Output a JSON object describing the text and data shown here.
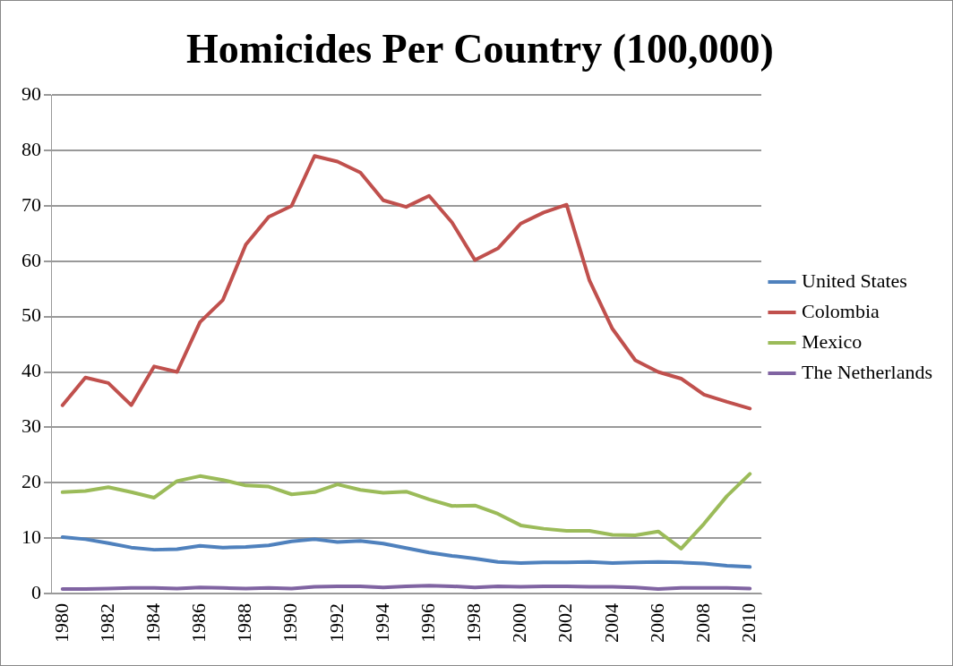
{
  "chart_data": {
    "type": "line",
    "title": "Homicides Per Country (100,000)",
    "categories": [
      "1980",
      null,
      "1982",
      null,
      "1984",
      null,
      "1986",
      null,
      "1988",
      null,
      "1990",
      null,
      "1992",
      null,
      "1994",
      null,
      "1996",
      null,
      "1998",
      null,
      "2000",
      null,
      "2002",
      null,
      "2004",
      null,
      "2006",
      null,
      "2008",
      null,
      "2010"
    ],
    "series": [
      {
        "name": "United States",
        "color": "#4f81bd",
        "values": [
          10.2,
          9.8,
          9.1,
          8.3,
          7.9,
          8.0,
          8.6,
          8.3,
          8.4,
          8.7,
          9.4,
          9.8,
          9.3,
          9.5,
          9.0,
          8.2,
          7.4,
          6.8,
          6.3,
          5.7,
          5.5,
          5.6,
          5.6,
          5.7,
          5.5,
          5.6,
          5.7,
          5.6,
          5.4,
          5.0,
          4.8
        ]
      },
      {
        "name": "Colombia",
        "color": "#c0504d",
        "values": [
          34,
          39,
          38,
          34,
          41,
          40,
          49,
          53,
          63,
          68,
          70,
          79,
          78,
          76,
          71,
          69.8,
          71.8,
          67,
          60.2,
          62.3,
          66.8,
          68.8,
          70.2,
          56.5,
          47.8,
          42.1,
          40,
          38.8,
          35.9,
          34.6,
          33.4
        ]
      },
      {
        "name": "Mexico",
        "color": "#9bbb59",
        "values": [
          18.3,
          18.5,
          19.2,
          18.3,
          17.3,
          20.3,
          21.2,
          20.5,
          19.5,
          19.3,
          17.9,
          18.3,
          19.7,
          18.7,
          18.2,
          18.4,
          17,
          15.8,
          15.9,
          14.4,
          12.3,
          11.7,
          11.3,
          11.3,
          10.6,
          10.5,
          11.2,
          8.1,
          12.6,
          17.6,
          21.6
        ]
      },
      {
        "name": "The Netherlands",
        "color": "#8064a2",
        "values": [
          0.8,
          0.8,
          0.9,
          1.0,
          1.0,
          0.9,
          1.1,
          1.0,
          0.9,
          1.0,
          0.9,
          1.2,
          1.3,
          1.3,
          1.1,
          1.3,
          1.4,
          1.3,
          1.1,
          1.3,
          1.2,
          1.3,
          1.3,
          1.2,
          1.2,
          1.1,
          0.8,
          1.0,
          1.0,
          1.0,
          0.9
        ]
      }
    ],
    "ylim": [
      0,
      90
    ],
    "yticks": [
      0,
      10,
      20,
      30,
      40,
      50,
      60,
      70,
      80,
      90
    ],
    "grid": "y",
    "legend": "right",
    "marker": "none",
    "line_style": "solid"
  }
}
